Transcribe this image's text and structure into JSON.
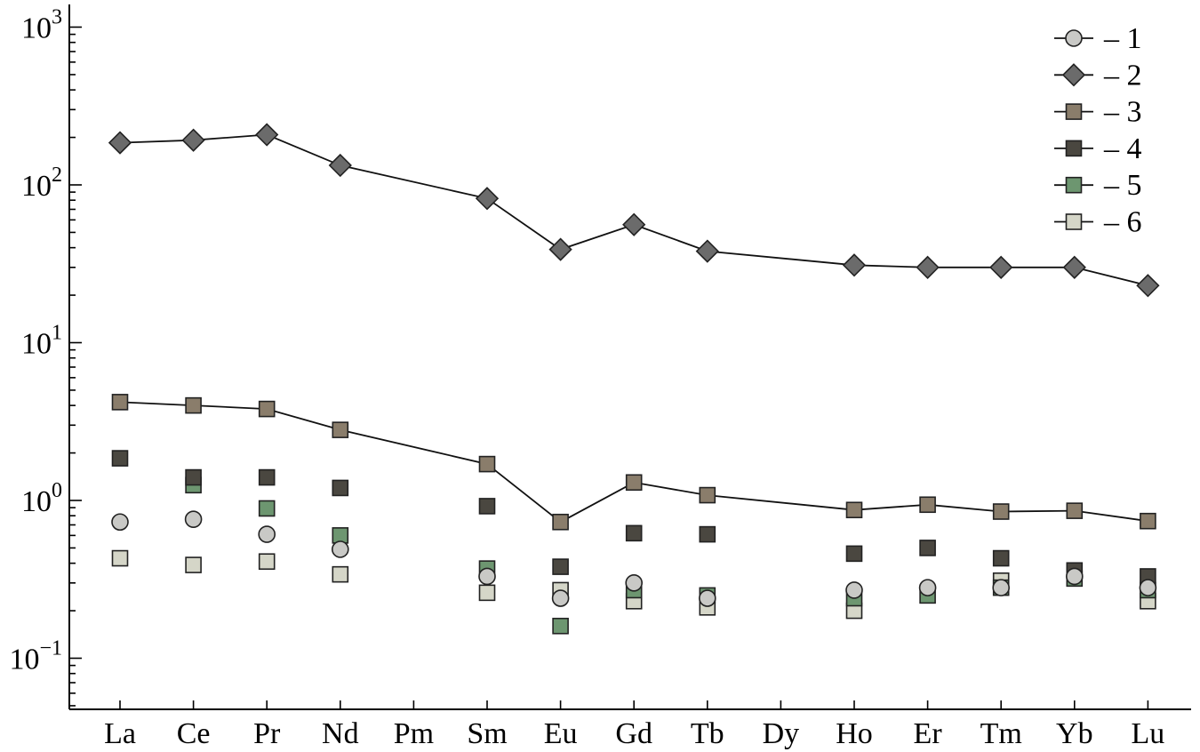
{
  "chart_data": {
    "type": "scatter",
    "title": "",
    "xlabel": "",
    "ylabel": "",
    "yscale": "log",
    "ylim": [
      0.05,
      1000
    ],
    "grid": false,
    "legend_position": "top-right",
    "categories": [
      "La",
      "Ce",
      "Pr",
      "Nd",
      "Pm",
      "Sm",
      "Eu",
      "Gd",
      "Tb",
      "Dy",
      "Ho",
      "Er",
      "Tm",
      "Yb",
      "Lu"
    ],
    "y_ticks": [
      {
        "value": 0.1,
        "base": "10",
        "exp": "−1"
      },
      {
        "value": 1,
        "base": "10",
        "exp": "0"
      },
      {
        "value": 10,
        "base": "10",
        "exp": "1"
      },
      {
        "value": 100,
        "base": "10",
        "exp": "2"
      },
      {
        "value": 1000,
        "base": "10",
        "exp": "3"
      }
    ],
    "series": [
      {
        "name": "1",
        "legend_label": "– 1",
        "marker": "circle",
        "color": "#c9c9c6",
        "line": false,
        "values": [
          0.73,
          0.76,
          0.61,
          0.49,
          null,
          0.33,
          0.24,
          0.3,
          0.24,
          null,
          0.27,
          0.28,
          0.28,
          0.33,
          0.28
        ]
      },
      {
        "name": "2",
        "legend_label": "– 2",
        "marker": "diamond",
        "color": "#6b6b6b",
        "line": true,
        "values": [
          185,
          192,
          208,
          133,
          null,
          82,
          39,
          56,
          38,
          null,
          31,
          30,
          30,
          30,
          23
        ]
      },
      {
        "name": "3",
        "legend_label": "– 3",
        "marker": "square",
        "color": "#8a7d6b",
        "line": true,
        "values": [
          4.2,
          4.0,
          3.8,
          2.8,
          null,
          1.7,
          0.73,
          1.3,
          1.08,
          null,
          0.87,
          0.94,
          0.85,
          0.86,
          0.74
        ]
      },
      {
        "name": "4",
        "legend_label": "– 4",
        "marker": "square",
        "color": "#4a4740",
        "line": false,
        "values": [
          1.85,
          1.4,
          1.4,
          1.2,
          null,
          0.92,
          0.38,
          0.62,
          0.61,
          null,
          0.46,
          0.5,
          0.43,
          0.36,
          0.33
        ]
      },
      {
        "name": "5",
        "legend_label": "– 5",
        "marker": "square",
        "color": "#6d9670",
        "line": false,
        "values": [
          null,
          1.25,
          0.89,
          0.6,
          null,
          0.37,
          0.16,
          0.27,
          0.25,
          null,
          0.24,
          0.25,
          0.28,
          0.32,
          0.27
        ]
      },
      {
        "name": "6",
        "legend_label": "– 6",
        "marker": "square",
        "color": "#d5d6c8",
        "line": false,
        "values": [
          0.43,
          0.39,
          0.41,
          0.34,
          null,
          0.26,
          0.27,
          0.23,
          0.21,
          null,
          0.2,
          null,
          0.31,
          null,
          0.23
        ]
      }
    ]
  }
}
